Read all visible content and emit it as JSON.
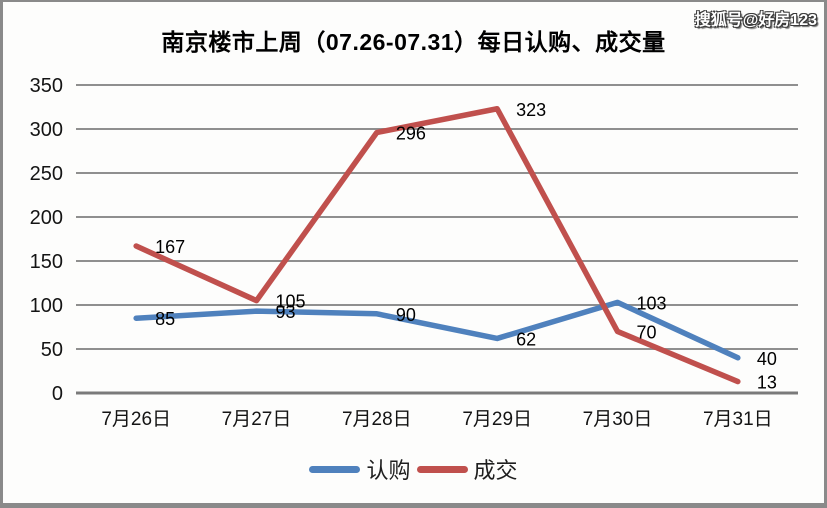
{
  "watermark": "搜狐号@好房123",
  "chart_data": {
    "type": "line",
    "title": "南京楼市上周（07.26-07.31）每日认购、成交量",
    "categories": [
      "7月26日",
      "7月27日",
      "7月28日",
      "7月29日",
      "7月30日",
      "7月31日"
    ],
    "series": [
      {
        "name": "认购",
        "color": "#4F81BD",
        "values": [
          85,
          93,
          90,
          62,
          103,
          40
        ]
      },
      {
        "name": "成交",
        "color": "#C0504D",
        "values": [
          167,
          105,
          296,
          323,
          70,
          13
        ]
      }
    ],
    "xlabel": "",
    "ylabel": "",
    "ylim": [
      0,
      350
    ],
    "yticks": [
      0,
      50,
      100,
      150,
      200,
      250,
      300,
      350
    ],
    "grid": true,
    "data_labels": true,
    "legend_position": "bottom",
    "gridline_color": "#8f8f8f",
    "axis_line_color": "#7a7a7a",
    "label_color": "#000000"
  }
}
